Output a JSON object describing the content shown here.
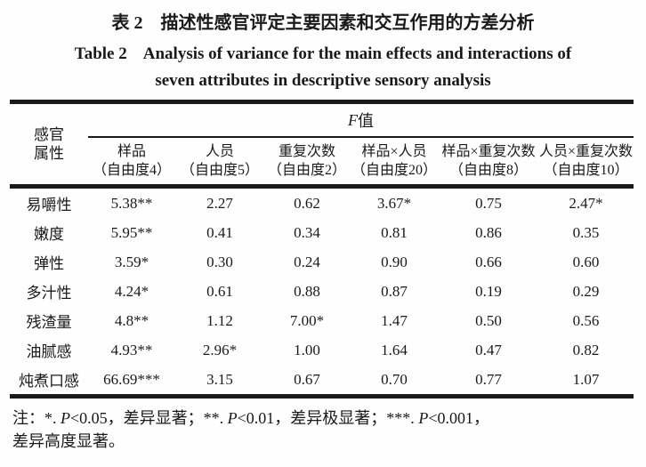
{
  "colors": {
    "text": "#1a1a1a",
    "rule": "#1a1a1a",
    "background": "#fefefe"
  },
  "caption": {
    "zh_label": "表 2",
    "zh_title": "描述性感官评定主要因素和交互作用的方差分析",
    "en_label": "Table 2",
    "en_title_line1": "Analysis of variance for the main effects and interactions of",
    "en_title_line2": "seven attributes in descriptive sensory analysis"
  },
  "table": {
    "stub_header_line1": "感官",
    "stub_header_line2": "属性",
    "group_header": {
      "f_symbol": "F",
      "suffix": "值"
    },
    "columns": [
      {
        "name": "样品",
        "df": "（自由度4）"
      },
      {
        "name": "人员",
        "df": "（自由度5）"
      },
      {
        "name": "重复次数",
        "df": "（自由度2）"
      },
      {
        "name": "样品×人员",
        "df": "（自由度20）"
      },
      {
        "name": "样品×重复次数",
        "df": "（自由度8）"
      },
      {
        "name": "人员×重复次数",
        "df": "（自由度10）"
      }
    ],
    "rows": [
      {
        "attribute": "易嚼性",
        "values": [
          "5.38**",
          "2.27",
          "0.62",
          "3.67*",
          "0.75",
          "2.47*"
        ]
      },
      {
        "attribute": "嫩度",
        "values": [
          "5.95**",
          "0.41",
          "0.34",
          "0.81",
          "0.86",
          "0.35"
        ]
      },
      {
        "attribute": "弹性",
        "values": [
          "3.59*",
          "0.30",
          "0.24",
          "0.90",
          "0.66",
          "0.60"
        ]
      },
      {
        "attribute": "多汁性",
        "values": [
          "4.24*",
          "0.61",
          "0.88",
          "0.87",
          "0.19",
          "0.29"
        ]
      },
      {
        "attribute": "残渣量",
        "values": [
          "4.8**",
          "1.12",
          "7.00*",
          "1.47",
          "0.50",
          "0.56"
        ]
      },
      {
        "attribute": "油腻感",
        "values": [
          "4.93**",
          "2.96*",
          "1.00",
          "1.64",
          "0.47",
          "0.82"
        ]
      },
      {
        "attribute": "炖煮口感",
        "values": [
          "66.69***",
          "3.15",
          "0.67",
          "0.70",
          "0.77",
          "1.07"
        ]
      }
    ]
  },
  "footnote": {
    "line1": [
      {
        "t": "注：*. "
      },
      {
        "t": "P",
        "i": true
      },
      {
        "t": "<0.05，差异显著；**. "
      },
      {
        "t": "P",
        "i": true
      },
      {
        "t": "<0.01，差异极显著；***. "
      },
      {
        "t": "P",
        "i": true
      },
      {
        "t": "<0.001，"
      }
    ],
    "line2": "差异高度显著。"
  }
}
